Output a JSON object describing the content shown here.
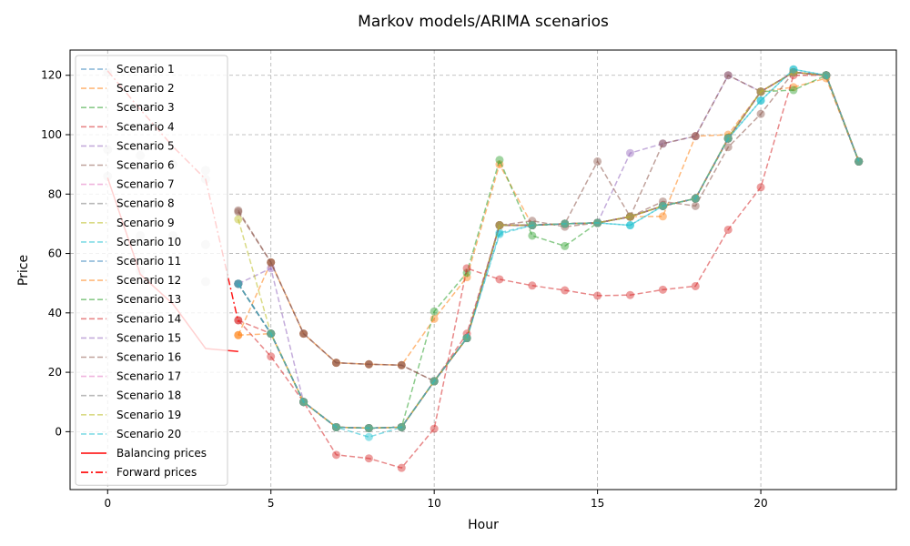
{
  "chart_data": {
    "type": "line",
    "title": "Markov models/ARIMA scenarios",
    "xlabel": "Hour",
    "ylabel": "Price",
    "xlim": [
      -1.15,
      24.15
    ],
    "ylim": [
      -19.5,
      128.5
    ],
    "xticks": [
      0,
      5,
      10,
      15,
      20
    ],
    "yticks": [
      0,
      20,
      40,
      60,
      80,
      100,
      120
    ],
    "grid": true,
    "legend_position": "upper-left",
    "colors": [
      "#1f77b4",
      "#ff7f0e",
      "#2ca02c",
      "#d62728",
      "#9467bd",
      "#8c564b",
      "#e377c2",
      "#7f7f7f",
      "#bcbd22",
      "#17becf",
      "#1f77b4",
      "#ff7f0e",
      "#2ca02c",
      "#d62728",
      "#9467bd",
      "#8c564b",
      "#e377c2",
      "#7f7f7f",
      "#bcbd22",
      "#17becf"
    ],
    "series": [
      {
        "name": "Scenario 1",
        "x": [
          4,
          5,
          6,
          7,
          8,
          9,
          10,
          11,
          12,
          13,
          14,
          15,
          16,
          17,
          18,
          19,
          20,
          21,
          22,
          23
        ],
        "values": [
          49.8,
          33,
          10,
          1.5,
          1.2,
          1.5,
          17,
          31.5,
          69.5,
          69.5,
          70,
          70.3,
          72.4,
          76,
          78.5,
          98.7,
          114.5,
          121,
          120,
          91
        ]
      },
      {
        "name": "Scenario 2",
        "x": [
          4,
          5,
          6,
          7,
          8,
          9,
          10,
          11,
          12,
          13,
          14,
          15,
          16,
          17,
          18,
          19,
          20,
          21,
          22,
          23
        ],
        "values": [
          32.5,
          57,
          33,
          23.2,
          22.7,
          22.4,
          38,
          52,
          90,
          69.5,
          70,
          70.3,
          72.4,
          72.5,
          99.5,
          100,
          114.5,
          116,
          119,
          91
        ]
      },
      {
        "name": "Scenario 3",
        "x": [
          4,
          5,
          6,
          7,
          8,
          9,
          10,
          11,
          12,
          13,
          14,
          15,
          16,
          17,
          18,
          19,
          20,
          21,
          22,
          23
        ],
        "values": [
          49.8,
          33,
          10,
          1.5,
          1.2,
          1.5,
          40.5,
          53.5,
          91.5,
          66,
          62.5,
          70.3,
          72.4,
          76,
          78.5,
          99,
          114.5,
          115,
          120,
          91
        ]
      },
      {
        "name": "Scenario 4",
        "x": [
          4,
          5,
          6,
          7,
          8,
          9,
          10,
          11,
          12,
          13,
          14,
          15,
          16,
          17,
          18,
          19,
          20,
          21,
          22,
          23
        ],
        "values": [
          37.5,
          25.3,
          10,
          -7.8,
          -9,
          -12.2,
          1,
          55,
          51.3,
          49.2,
          47.6,
          45.8,
          46,
          47.8,
          49,
          68,
          82.3,
          120,
          120,
          91
        ]
      },
      {
        "name": "Scenario 5",
        "x": [
          4,
          5,
          6,
          7,
          8,
          9,
          10,
          11,
          12,
          13,
          14,
          15,
          16,
          17,
          18,
          19,
          20,
          21,
          22,
          23
        ],
        "values": [
          49.8,
          55,
          10,
          1.5,
          1.2,
          1.5,
          17,
          31.5,
          69.5,
          69.5,
          70,
          70.3,
          93.8,
          97,
          99.5,
          120,
          114.5,
          121,
          120,
          91
        ]
      },
      {
        "name": "Scenario 6",
        "x": [
          4,
          5,
          6,
          7,
          8,
          9,
          10,
          11,
          12,
          13,
          14,
          15,
          16,
          17,
          18,
          19,
          20,
          21,
          22,
          23
        ],
        "values": [
          74,
          57,
          33,
          23.2,
          22.7,
          22.4,
          17,
          31.5,
          69.5,
          69.5,
          70,
          91,
          72.4,
          97,
          99.5,
          120,
          114.5,
          121,
          120,
          91
        ]
      },
      {
        "name": "Scenario 7",
        "x": [
          4,
          5,
          6,
          7,
          8,
          9,
          10,
          11,
          12,
          13,
          14,
          15,
          16,
          17,
          18,
          19,
          20,
          21,
          22,
          23
        ],
        "values": [
          49.8,
          33,
          10,
          1.5,
          1.2,
          1.5,
          17,
          31.5,
          69.5,
          69.5,
          70,
          70.3,
          72.4,
          76,
          78.5,
          98.7,
          114.5,
          121,
          120,
          91
        ]
      },
      {
        "name": "Scenario 8",
        "x": [
          4,
          5,
          6,
          7,
          8,
          9,
          10,
          11,
          12,
          13,
          14,
          15,
          16,
          17,
          18,
          19,
          20,
          21,
          22,
          23
        ],
        "values": [
          49.8,
          33,
          10,
          1.5,
          1.2,
          1.5,
          17,
          31.5,
          69.5,
          69.5,
          70,
          70.3,
          72.4,
          76,
          78.5,
          98.7,
          114.5,
          121,
          120,
          91
        ]
      },
      {
        "name": "Scenario 9",
        "x": [
          4,
          5,
          6,
          7,
          8,
          9,
          10,
          11,
          12,
          13,
          14,
          15,
          16,
          17,
          18,
          19,
          20,
          21,
          22,
          23
        ],
        "values": [
          49.8,
          33,
          10,
          1.5,
          1.2,
          1.5,
          17,
          31.5,
          69.5,
          69.5,
          70,
          70.3,
          72.4,
          76,
          78.5,
          98.7,
          114.5,
          121,
          120,
          91
        ]
      },
      {
        "name": "Scenario 10",
        "x": [
          4,
          5,
          6,
          7,
          8,
          9,
          10,
          11,
          12,
          13,
          14,
          15,
          16,
          17,
          18,
          19,
          20,
          21,
          22,
          23
        ],
        "values": [
          49.8,
          33,
          10,
          1.5,
          -1.8,
          1.5,
          17,
          31.5,
          67,
          69.5,
          70,
          70.3,
          69.5,
          76,
          78.5,
          98.7,
          111.5,
          122,
          120,
          91
        ]
      },
      {
        "name": "Scenario 11",
        "x": [
          4,
          5,
          6,
          7,
          8,
          9,
          10,
          11,
          12,
          13,
          14,
          15,
          16,
          17,
          18,
          19,
          20,
          21,
          22,
          23
        ],
        "values": [
          49.8,
          33,
          10,
          1.5,
          1.2,
          1.5,
          17,
          31.5,
          69.5,
          69.5,
          70,
          70.3,
          72.4,
          76,
          78.5,
          98.7,
          114.5,
          121,
          120,
          91
        ]
      },
      {
        "name": "Scenario 12",
        "x": [
          4,
          5,
          6,
          7,
          8,
          9,
          10,
          11,
          12,
          13,
          14,
          15,
          16,
          17,
          18,
          19,
          20,
          21,
          22,
          23
        ],
        "values": [
          32.5,
          33,
          10,
          1.5,
          1.2,
          1.5,
          17,
          31.5,
          69.5,
          69.5,
          70,
          70.3,
          72.4,
          76,
          78.5,
          98.7,
          114.5,
          121,
          120,
          91
        ]
      },
      {
        "name": "Scenario 13",
        "x": [
          4,
          5,
          6,
          7,
          8,
          9,
          10,
          11,
          12,
          13,
          14,
          15,
          16,
          17,
          18,
          19,
          20,
          21,
          22,
          23
        ],
        "values": [
          49.8,
          33,
          10,
          1.5,
          1.2,
          1.5,
          17,
          31.5,
          69.5,
          69.5,
          70,
          70.3,
          72.4,
          76,
          78.5,
          98.7,
          114.5,
          121,
          120,
          91
        ]
      },
      {
        "name": "Scenario 14",
        "x": [
          4,
          5,
          6,
          7,
          8,
          9,
          10,
          11,
          12,
          13,
          14,
          15,
          16,
          17,
          18,
          19,
          20,
          21,
          22,
          23
        ],
        "values": [
          37.5,
          33,
          10,
          1.5,
          1.2,
          1.5,
          17,
          33,
          69.5,
          69.5,
          70,
          70.3,
          72.4,
          76,
          78.5,
          98.7,
          114.5,
          121,
          120,
          91
        ]
      },
      {
        "name": "Scenario 15",
        "x": [
          4,
          5,
          6,
          7,
          8,
          9,
          10,
          11,
          12,
          13,
          14,
          15,
          16,
          17,
          18,
          19,
          20,
          21,
          22,
          23
        ],
        "values": [
          49.8,
          33,
          10,
          1.5,
          1.2,
          1.5,
          17,
          31.5,
          69.5,
          69.5,
          70,
          70.3,
          72.4,
          76,
          78.5,
          98.7,
          114.5,
          121,
          120,
          91
        ]
      },
      {
        "name": "Scenario 16",
        "x": [
          4,
          5,
          6,
          7,
          8,
          9,
          10,
          11,
          12,
          13,
          14,
          15,
          16,
          17,
          18,
          19,
          20,
          21,
          22,
          23
        ],
        "values": [
          74.5,
          57,
          33,
          23.2,
          22.7,
          22.4,
          17,
          31.5,
          69.5,
          71,
          69,
          70.3,
          72.4,
          77.5,
          76,
          95.8,
          107,
          121,
          120,
          91
        ]
      },
      {
        "name": "Scenario 17",
        "x": [
          4,
          5,
          6,
          7,
          8,
          9,
          10,
          11,
          12,
          13,
          14,
          15,
          16,
          17,
          18,
          19,
          20,
          21,
          22,
          23
        ],
        "values": [
          49.8,
          33,
          10,
          1.5,
          1.2,
          1.5,
          17,
          31.5,
          69.5,
          69.5,
          70,
          70.3,
          72.4,
          76,
          78.5,
          98.7,
          114.5,
          121,
          120,
          91
        ]
      },
      {
        "name": "Scenario 18",
        "x": [
          4,
          5,
          6,
          7,
          8,
          9,
          10,
          11,
          12,
          13,
          14,
          15,
          16,
          17,
          18,
          19,
          20,
          21,
          22,
          23
        ],
        "values": [
          49.8,
          33,
          10,
          1.5,
          1.2,
          1.5,
          17,
          31.5,
          69.5,
          69.5,
          70,
          70.3,
          72.4,
          76,
          78.5,
          98.7,
          114.5,
          121,
          120,
          91
        ]
      },
      {
        "name": "Scenario 19",
        "x": [
          4,
          5,
          6,
          7,
          8,
          9,
          10,
          11,
          12,
          13,
          14,
          15,
          16,
          17,
          18,
          19,
          20,
          21,
          22,
          23
        ],
        "values": [
          71.5,
          33,
          10,
          1.5,
          1.2,
          1.5,
          17,
          31.5,
          69.5,
          69.5,
          70,
          70.3,
          72.4,
          76,
          78.5,
          98.7,
          114.5,
          121,
          120,
          91
        ]
      },
      {
        "name": "Scenario 20",
        "x": [
          4,
          5,
          6,
          7,
          8,
          9,
          10,
          11,
          12,
          13,
          14,
          15,
          16,
          17,
          18,
          19,
          20,
          21,
          22,
          23
        ],
        "values": [
          49.8,
          33,
          10,
          1.5,
          1.2,
          1.5,
          17,
          31.5,
          66.5,
          69.5,
          70,
          70.3,
          69.5,
          76,
          78.5,
          98.7,
          111.5,
          122,
          120,
          91
        ]
      }
    ],
    "balancing": {
      "name": "Balancing prices",
      "x": [
        0,
        1,
        2,
        3,
        4
      ],
      "values": [
        85.5,
        53,
        43,
        28,
        27
      ]
    },
    "forward": {
      "name": "Forward prices",
      "x": [
        0,
        1,
        2,
        3,
        4
      ],
      "values": [
        121.5,
        108.5,
        96,
        85,
        37
      ]
    },
    "history_points": [
      {
        "x": 0,
        "y": 95
      },
      {
        "x": 0,
        "y": 86
      },
      {
        "x": 0,
        "y": 121
      },
      {
        "x": 1,
        "y": 93
      },
      {
        "x": 1,
        "y": 66
      },
      {
        "x": 1,
        "y": 54
      },
      {
        "x": 2,
        "y": 90
      },
      {
        "x": 2,
        "y": 66
      },
      {
        "x": 2,
        "y": 51
      },
      {
        "x": 3,
        "y": 88
      },
      {
        "x": 3,
        "y": 85
      },
      {
        "x": 3,
        "y": 63
      },
      {
        "x": 3,
        "y": 50.5
      }
    ]
  }
}
